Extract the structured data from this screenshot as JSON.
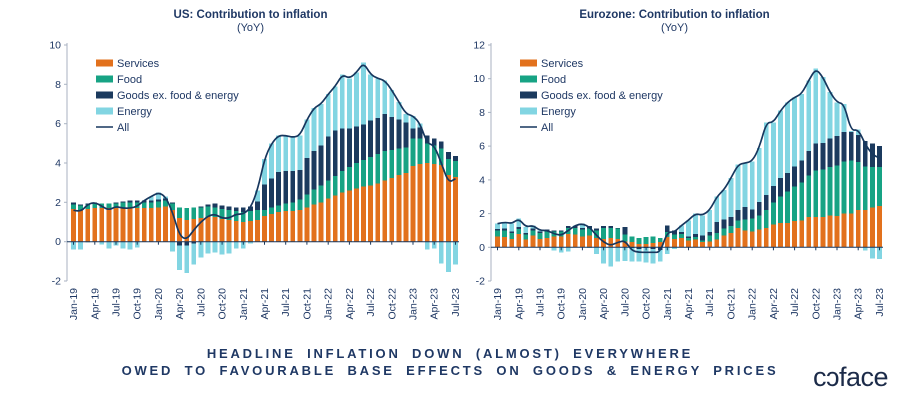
{
  "colors": {
    "services": "#E2711D",
    "food": "#17A384",
    "goods": "#1B3A5E",
    "energy": "#82D5E2",
    "line": "#17375E",
    "text": "#1F3864",
    "axis_y": "#A8B2C1",
    "axis_x": "#17375E"
  },
  "footer": {
    "line1": "HEADLINE INFLATION DOWN (ALMOST) EVERYWHERE",
    "line2": "OWED TO FAVOURABLE BASE EFFECTS ON GOODS & ENERGY PRICES"
  },
  "logo": {
    "text": "coface",
    "display": "cɔface"
  },
  "chart_data": [
    {
      "type": "stacked-bar-line",
      "title": "US: Contribution to inflation",
      "subtitle": "(YoY)",
      "ylim": [
        -2,
        10
      ],
      "yticks": [
        -2,
        0,
        2,
        4,
        6,
        8,
        10
      ],
      "grid": false,
      "legend_position": "top-left",
      "tick_every": 3,
      "categories": [
        "Jan-19",
        "Feb-19",
        "Mar-19",
        "Apr-19",
        "May-19",
        "Jun-19",
        "Jul-19",
        "Aug-19",
        "Sep-19",
        "Oct-19",
        "Nov-19",
        "Dec-19",
        "Jan-20",
        "Feb-20",
        "Mar-20",
        "Apr-20",
        "May-20",
        "Jun-20",
        "Jul-20",
        "Aug-20",
        "Sep-20",
        "Oct-20",
        "Nov-20",
        "Dec-20",
        "Jan-21",
        "Feb-21",
        "Mar-21",
        "Apr-21",
        "May-21",
        "Jun-21",
        "Jul-21",
        "Aug-21",
        "Sep-21",
        "Oct-21",
        "Nov-21",
        "Dec-21",
        "Jan-22",
        "Feb-22",
        "Mar-22",
        "Apr-22",
        "May-22",
        "Jun-22",
        "Jul-22",
        "Aug-22",
        "Sep-22",
        "Oct-22",
        "Nov-22",
        "Dec-22",
        "Jan-23",
        "Feb-23",
        "Mar-23",
        "Apr-23",
        "May-23",
        "Jun-23",
        "Jul-23"
      ],
      "series": [
        {
          "name": "Services",
          "color_key": "services",
          "values": [
            1.65,
            1.6,
            1.65,
            1.7,
            1.7,
            1.7,
            1.7,
            1.75,
            1.75,
            1.7,
            1.7,
            1.7,
            1.75,
            1.8,
            1.6,
            1.2,
            1.1,
            1.15,
            1.2,
            1.25,
            1.25,
            1.15,
            1.1,
            1.05,
            1.0,
            1.05,
            1.1,
            1.3,
            1.4,
            1.5,
            1.55,
            1.55,
            1.6,
            1.75,
            1.9,
            2.0,
            2.2,
            2.35,
            2.5,
            2.6,
            2.7,
            2.8,
            2.85,
            2.95,
            3.1,
            3.25,
            3.4,
            3.5,
            3.85,
            3.95,
            4.0,
            3.95,
            3.9,
            3.4,
            3.3
          ]
        },
        {
          "name": "Food",
          "color_key": "food",
          "values": [
            0.25,
            0.25,
            0.25,
            0.25,
            0.25,
            0.25,
            0.25,
            0.25,
            0.25,
            0.3,
            0.3,
            0.3,
            0.3,
            0.3,
            0.35,
            0.55,
            0.6,
            0.6,
            0.55,
            0.55,
            0.5,
            0.5,
            0.5,
            0.5,
            0.5,
            0.5,
            0.5,
            0.3,
            0.35,
            0.35,
            0.4,
            0.45,
            0.55,
            0.65,
            0.75,
            0.85,
            0.9,
            1.0,
            1.1,
            1.2,
            1.3,
            1.35,
            1.45,
            1.5,
            1.5,
            1.4,
            1.35,
            1.3,
            1.4,
            1.3,
            1.0,
            0.95,
            0.85,
            0.8,
            0.8
          ]
        },
        {
          "name": "Goods ex. food & energy",
          "color_key": "goods",
          "values": [
            0.1,
            0.05,
            0.05,
            0.05,
            0.0,
            0.0,
            0.05,
            0.05,
            0.1,
            0.1,
            0.1,
            0.1,
            0.1,
            0.1,
            0.05,
            -0.2,
            -0.2,
            -0.1,
            0.05,
            0.1,
            0.2,
            0.2,
            0.2,
            0.2,
            0.25,
            0.25,
            0.45,
            1.3,
            1.45,
            1.7,
            1.65,
            1.6,
            1.5,
            1.85,
            1.95,
            2.05,
            2.25,
            2.3,
            2.15,
            1.95,
            1.85,
            1.8,
            1.85,
            1.85,
            1.9,
            1.7,
            1.45,
            1.25,
            0.5,
            0.55,
            0.4,
            0.35,
            0.35,
            0.35,
            0.25
          ]
        },
        {
          "name": "Energy",
          "color_key": "energy",
          "values": [
            -0.4,
            -0.4,
            -0.05,
            0.0,
            -0.15,
            -0.35,
            -0.2,
            -0.35,
            -0.4,
            -0.3,
            0.0,
            0.2,
            0.35,
            0.1,
            -0.5,
            -1.25,
            -1.4,
            -1.05,
            -0.8,
            -0.6,
            -0.55,
            -0.65,
            -0.6,
            -0.35,
            -0.35,
            -0.1,
            0.55,
            1.3,
            1.8,
            1.85,
            1.8,
            1.7,
            1.75,
            1.95,
            2.2,
            2.1,
            2.15,
            2.25,
            2.75,
            2.55,
            2.75,
            3.15,
            2.35,
            2.0,
            1.7,
            1.35,
            0.9,
            0.45,
            0.65,
            0.2,
            -0.4,
            -0.35,
            -1.1,
            -1.55,
            -1.15
          ]
        }
      ],
      "line": {
        "name": "All",
        "color_key": "line",
        "values": [
          1.6,
          1.5,
          1.9,
          2.0,
          1.8,
          1.6,
          1.8,
          1.7,
          1.7,
          1.8,
          2.1,
          2.3,
          2.5,
          2.3,
          1.5,
          0.3,
          0.1,
          0.6,
          1.0,
          1.3,
          1.4,
          1.2,
          1.2,
          1.4,
          1.4,
          1.7,
          2.6,
          4.2,
          5.0,
          5.4,
          5.4,
          5.3,
          5.4,
          6.2,
          6.8,
          7.0,
          7.5,
          7.9,
          8.5,
          8.3,
          8.6,
          9.1,
          8.5,
          8.3,
          8.2,
          7.7,
          7.1,
          6.5,
          6.4,
          6.0,
          5.0,
          4.9,
          4.0,
          3.0,
          3.2
        ]
      }
    },
    {
      "type": "stacked-bar-line",
      "title": "Eurozone: Contribution to inflation",
      "subtitle": "(YoY)",
      "ylim": [
        -2,
        12
      ],
      "yticks": [
        -2,
        0,
        2,
        4,
        6,
        8,
        10,
        12
      ],
      "grid": false,
      "legend_position": "top-left",
      "tick_every": 3,
      "categories": [
        "Jan-19",
        "Feb-19",
        "Mar-19",
        "Apr-19",
        "May-19",
        "Jun-19",
        "Jul-19",
        "Aug-19",
        "Sep-19",
        "Oct-19",
        "Nov-19",
        "Dec-19",
        "Jan-20",
        "Feb-20",
        "Mar-20",
        "Apr-20",
        "May-20",
        "Jun-20",
        "Jul-20",
        "Aug-20",
        "Sep-20",
        "Oct-20",
        "Nov-20",
        "Dec-20",
        "Jan-21",
        "Feb-21",
        "Mar-21",
        "Apr-21",
        "May-21",
        "Jun-21",
        "Jul-21",
        "Aug-21",
        "Sep-21",
        "Oct-21",
        "Nov-21",
        "Dec-21",
        "Jan-22",
        "Feb-22",
        "Mar-22",
        "Apr-22",
        "May-22",
        "Jun-22",
        "Jul-22",
        "Aug-22",
        "Sep-22",
        "Oct-22",
        "Nov-22",
        "Dec-22",
        "Jan-23",
        "Feb-23",
        "Mar-23",
        "Apr-23",
        "May-23",
        "Jun-23",
        "Jul-23"
      ],
      "series": [
        {
          "name": "Services",
          "color_key": "services",
          "values": [
            0.65,
            0.6,
            0.5,
            0.8,
            0.45,
            0.7,
            0.5,
            0.55,
            0.65,
            0.65,
            0.8,
            0.75,
            0.65,
            0.7,
            0.55,
            0.5,
            0.55,
            0.5,
            0.35,
            0.3,
            0.2,
            0.2,
            0.25,
            0.3,
            0.6,
            0.5,
            0.55,
            0.4,
            0.45,
            0.3,
            0.35,
            0.45,
            0.7,
            0.85,
            1.15,
            1.0,
            0.95,
            1.05,
            1.15,
            1.35,
            1.45,
            1.45,
            1.55,
            1.6,
            1.8,
            1.8,
            1.8,
            1.9,
            1.85,
            2.0,
            2.0,
            2.2,
            2.2,
            2.35,
            2.45
          ]
        },
        {
          "name": "Food",
          "color_key": "food",
          "values": [
            0.35,
            0.4,
            0.35,
            0.3,
            0.3,
            0.3,
            0.35,
            0.4,
            0.3,
            0.3,
            0.35,
            0.4,
            0.4,
            0.4,
            0.45,
            0.65,
            0.6,
            0.6,
            0.4,
            0.35,
            0.35,
            0.4,
            0.4,
            0.25,
            0.3,
            0.25,
            0.25,
            0.15,
            0.15,
            0.1,
            0.35,
            0.4,
            0.4,
            0.4,
            0.45,
            0.65,
            0.75,
            0.85,
            1.05,
            1.3,
            1.55,
            1.85,
            2.05,
            2.25,
            2.45,
            2.75,
            2.8,
            2.85,
            3.0,
            3.1,
            3.15,
            2.85,
            2.6,
            2.4,
            2.3
          ]
        },
        {
          "name": "Goods ex. food & energy",
          "color_key": "goods",
          "values": [
            0.1,
            0.1,
            0.1,
            0.1,
            0.1,
            0.1,
            0.1,
            0.1,
            0.05,
            0.05,
            0.1,
            0.1,
            0.1,
            0.15,
            0.1,
            0.1,
            0.1,
            0.05,
            0.45,
            -0.05,
            -0.1,
            -0.05,
            -0.1,
            -0.15,
            0.4,
            0.25,
            0.1,
            0.1,
            0.2,
            0.3,
            0.2,
            0.65,
            0.55,
            0.55,
            0.6,
            0.75,
            0.55,
            0.8,
            0.9,
            1.0,
            1.1,
            1.1,
            1.2,
            1.3,
            1.45,
            1.6,
            1.6,
            1.7,
            1.75,
            1.75,
            1.7,
            1.6,
            1.5,
            1.4,
            1.25
          ]
        },
        {
          "name": "Energy",
          "color_key": "energy",
          "values": [
            0.3,
            0.4,
            0.45,
            0.5,
            0.35,
            0.2,
            0.05,
            -0.05,
            -0.2,
            -0.3,
            -0.25,
            0.05,
            0.25,
            -0.05,
            -0.4,
            -0.95,
            -1.15,
            -0.85,
            -0.8,
            -0.8,
            -0.75,
            -0.85,
            -0.85,
            -0.7,
            -0.4,
            -0.1,
            0.4,
            0.95,
            1.2,
            1.2,
            1.3,
            1.5,
            1.75,
            2.3,
            2.7,
            2.6,
            2.85,
            3.2,
            4.3,
            3.75,
            4.0,
            4.2,
            4.1,
            3.95,
            4.2,
            4.45,
            3.9,
            2.75,
            2.0,
            1.65,
            0.05,
            0.35,
            -0.2,
            -0.65,
            -0.7
          ]
        }
      ],
      "line": {
        "name": "All",
        "color_key": "line",
        "values": [
          1.4,
          1.5,
          1.4,
          1.7,
          1.2,
          1.3,
          1.0,
          1.0,
          0.8,
          0.7,
          1.0,
          1.3,
          1.4,
          1.2,
          0.7,
          0.3,
          0.1,
          0.3,
          0.4,
          -0.2,
          -0.3,
          -0.3,
          -0.3,
          -0.3,
          0.9,
          0.9,
          1.3,
          1.6,
          2.0,
          1.9,
          2.2,
          3.0,
          3.4,
          4.1,
          4.9,
          5.0,
          5.1,
          5.9,
          7.4,
          7.4,
          8.1,
          8.6,
          8.9,
          9.1,
          9.9,
          10.6,
          10.1,
          9.2,
          8.6,
          8.5,
          6.9,
          7.0,
          6.1,
          5.5,
          5.3
        ]
      }
    }
  ]
}
